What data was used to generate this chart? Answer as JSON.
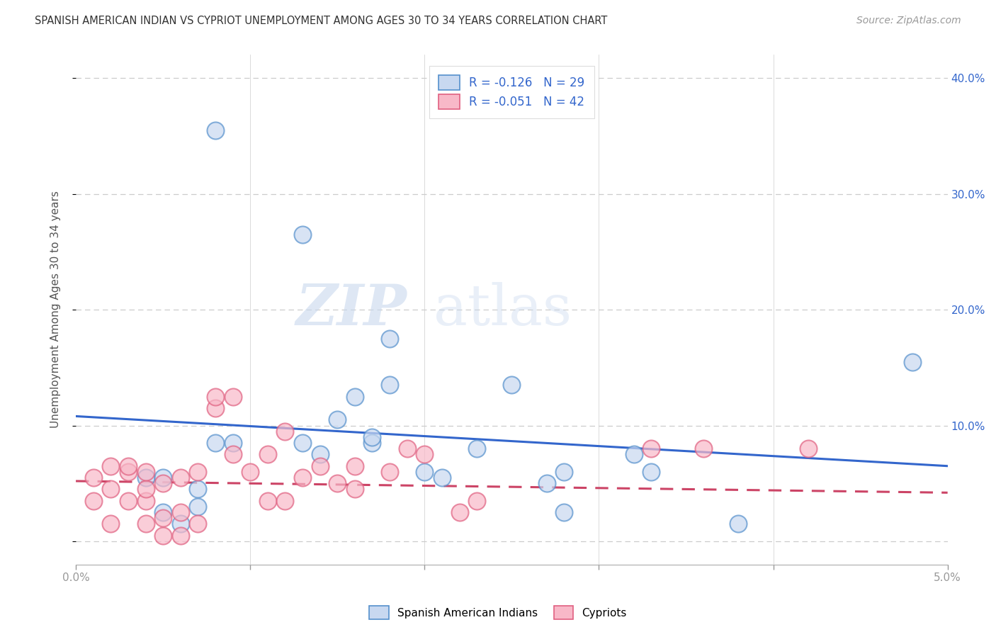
{
  "title": "SPANISH AMERICAN INDIAN VS CYPRIOT UNEMPLOYMENT AMONG AGES 30 TO 34 YEARS CORRELATION CHART",
  "source": "Source: ZipAtlas.com",
  "ylabel": "Unemployment Among Ages 30 to 34 years",
  "xlim": [
    0.0,
    0.05
  ],
  "ylim": [
    -0.02,
    0.42
  ],
  "x_ticks": [
    0.0,
    0.01,
    0.02,
    0.03,
    0.04,
    0.05
  ],
  "x_tick_labels": [
    "0.0%",
    "",
    "",
    "",
    "",
    "5.0%"
  ],
  "y_ticks": [
    0.0,
    0.1,
    0.2,
    0.3,
    0.4
  ],
  "y_tick_labels": [
    "",
    "10.0%",
    "20.0%",
    "30.0%",
    "40.0%"
  ],
  "legend_R_blue": "R = -0.126",
  "legend_N_blue": "N = 29",
  "legend_R_pink": "R = -0.051",
  "legend_N_pink": "N = 42",
  "blue_fill": "#c8d8f0",
  "blue_edge": "#5590cc",
  "pink_fill": "#f8b8c8",
  "pink_edge": "#e06080",
  "blue_line_color": "#3366cc",
  "pink_line_color": "#cc4466",
  "watermark_zip": "ZIP",
  "watermark_atlas": "atlas",
  "blue_scatter_x": [
    0.008,
    0.013,
    0.004,
    0.005,
    0.005,
    0.006,
    0.007,
    0.007,
    0.008,
    0.009,
    0.013,
    0.014,
    0.015,
    0.016,
    0.017,
    0.017,
    0.018,
    0.018,
    0.02,
    0.021,
    0.023,
    0.025,
    0.027,
    0.028,
    0.028,
    0.032,
    0.033,
    0.048,
    0.038
  ],
  "blue_scatter_y": [
    0.355,
    0.265,
    0.055,
    0.055,
    0.025,
    0.015,
    0.045,
    0.03,
    0.085,
    0.085,
    0.085,
    0.075,
    0.105,
    0.125,
    0.085,
    0.09,
    0.175,
    0.135,
    0.06,
    0.055,
    0.08,
    0.135,
    0.05,
    0.06,
    0.025,
    0.075,
    0.06,
    0.155,
    0.015
  ],
  "pink_scatter_x": [
    0.001,
    0.001,
    0.002,
    0.002,
    0.002,
    0.003,
    0.003,
    0.003,
    0.004,
    0.004,
    0.004,
    0.004,
    0.005,
    0.005,
    0.005,
    0.006,
    0.006,
    0.006,
    0.007,
    0.007,
    0.008,
    0.008,
    0.009,
    0.009,
    0.01,
    0.011,
    0.011,
    0.012,
    0.012,
    0.013,
    0.014,
    0.015,
    0.016,
    0.016,
    0.018,
    0.019,
    0.02,
    0.022,
    0.023,
    0.033,
    0.036,
    0.042
  ],
  "pink_scatter_y": [
    0.035,
    0.055,
    0.015,
    0.045,
    0.065,
    0.035,
    0.06,
    0.065,
    0.015,
    0.035,
    0.045,
    0.06,
    0.005,
    0.02,
    0.05,
    0.005,
    0.025,
    0.055,
    0.015,
    0.06,
    0.115,
    0.125,
    0.075,
    0.125,
    0.06,
    0.035,
    0.075,
    0.035,
    0.095,
    0.055,
    0.065,
    0.05,
    0.065,
    0.045,
    0.06,
    0.08,
    0.075,
    0.025,
    0.035,
    0.08,
    0.08,
    0.08
  ],
  "blue_line_x": [
    0.0,
    0.05
  ],
  "blue_line_y": [
    0.108,
    0.065
  ],
  "pink_line_x": [
    0.0,
    0.05
  ],
  "pink_line_y": [
    0.052,
    0.042
  ]
}
